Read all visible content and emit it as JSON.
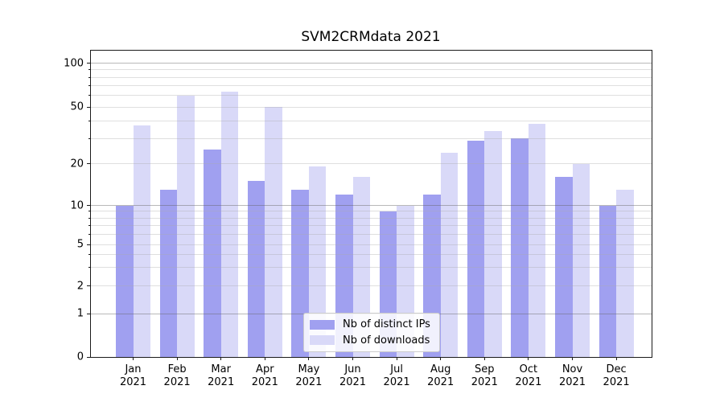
{
  "figure": {
    "title": "SVM2CRMdata 2021"
  },
  "chart_data": {
    "type": "bar",
    "title": "SVM2CRMdata 2021",
    "xlabel": "",
    "ylabel": "",
    "categories": [
      "Jan",
      "Feb",
      "Mar",
      "Apr",
      "May",
      "Jun",
      "Jul",
      "Aug",
      "Sep",
      "Oct",
      "Nov",
      "Dec"
    ],
    "category_year": "2021",
    "series": [
      {
        "name": "Nb of distinct IPs",
        "color": "#a0a0f0",
        "values": [
          10,
          13,
          25,
          15,
          13,
          12,
          9,
          12,
          29,
          30,
          16,
          10
        ]
      },
      {
        "name": "Nb of downloads",
        "color": "#d9d9f8",
        "values": [
          37,
          60,
          64,
          50,
          19,
          16,
          10,
          24,
          34,
          38,
          20,
          13
        ]
      }
    ],
    "yscale": "symlog",
    "ylim": [
      0,
      130
    ],
    "yticks_labeled": [
      0,
      1,
      2,
      5,
      10,
      20,
      50,
      100
    ],
    "yticks_minor": [
      3,
      4,
      6,
      7,
      8,
      9,
      30,
      40,
      60,
      70,
      80,
      90
    ],
    "grid": "on",
    "legend": {
      "position": "lower-center",
      "labels": [
        "Nb of distinct IPs",
        "Nb of downloads"
      ]
    }
  },
  "colors": {
    "bar_distinct_ips": "#a0a0f0",
    "bar_downloads": "#d9d9f8",
    "spine": "#1a1a1a",
    "text": "#000000",
    "legend_border": "#cccccc",
    "background": "#ffffff"
  }
}
